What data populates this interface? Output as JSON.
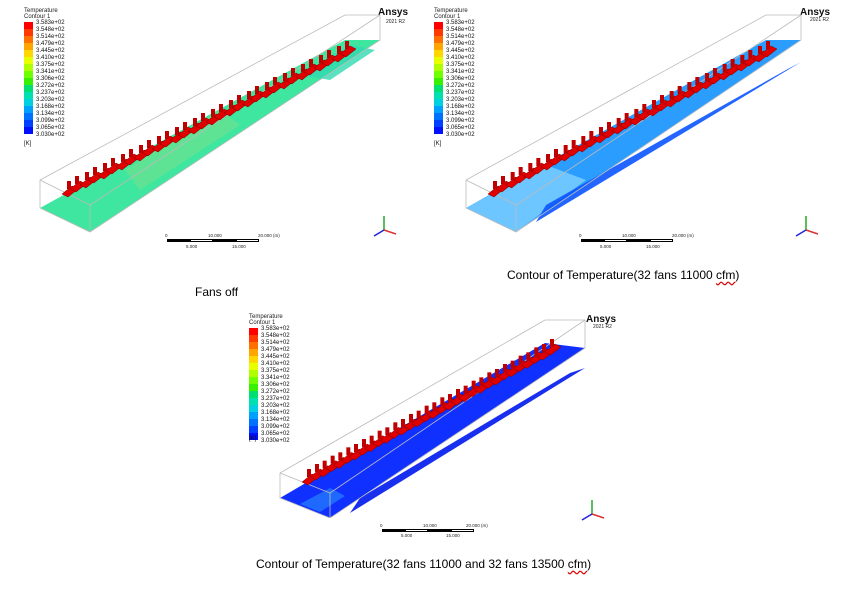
{
  "legend": {
    "title": "Temperature",
    "subtitle": "Contour 1",
    "unit": "[K]",
    "levels": [
      "3.583e+02",
      "3.548e+02",
      "3.514e+02",
      "3.479e+02",
      "3.445e+02",
      "3.410e+02",
      "3.375e+02",
      "3.341e+02",
      "3.306e+02",
      "3.272e+02",
      "3.237e+02",
      "3.203e+02",
      "3.168e+02",
      "3.134e+02",
      "3.099e+02",
      "3.065e+02",
      "3.030e+02"
    ],
    "colors": [
      "#ff0000",
      "#ff3a00",
      "#ff7000",
      "#ffa500",
      "#ffd700",
      "#e8ff00",
      "#b0ff00",
      "#70ff00",
      "#38f000",
      "#00e070",
      "#00e0b0",
      "#00d0e0",
      "#00a0ff",
      "#0070ff",
      "#0040ff",
      "#0010ff"
    ]
  },
  "brand": {
    "name": "Ansys",
    "version": "2021 R2"
  },
  "scale": {
    "ticks_top": [
      "0",
      "10.000",
      "20.000 (m)"
    ],
    "ticks_bottom": [
      "5.000",
      "15.000"
    ]
  },
  "axes": {
    "y": "Y",
    "z": "Z",
    "x": "X"
  },
  "captions": {
    "panel1": "Fans off",
    "panel2_prefix": "Contour of Temperature(32 fans 11000 ",
    "panel2_unit": "cfm",
    "panel2_suffix": ")",
    "panel3_prefix": "Contour of Temperature(32 fans 11000 and 32 fans 13500 ",
    "panel3_unit": "cfm",
    "panel3_suffix": ")"
  },
  "panels": [
    {
      "id": "fans-off",
      "floor_color": "#3ee6a0",
      "floor_color2": "#2fd9b0"
    },
    {
      "id": "fans-11000",
      "floor_color": "#2a9dff",
      "floor_color2": "#0a55ff"
    },
    {
      "id": "fans-11000-13500",
      "floor_color": "#1030ff",
      "floor_color2": "#0018ee"
    }
  ]
}
